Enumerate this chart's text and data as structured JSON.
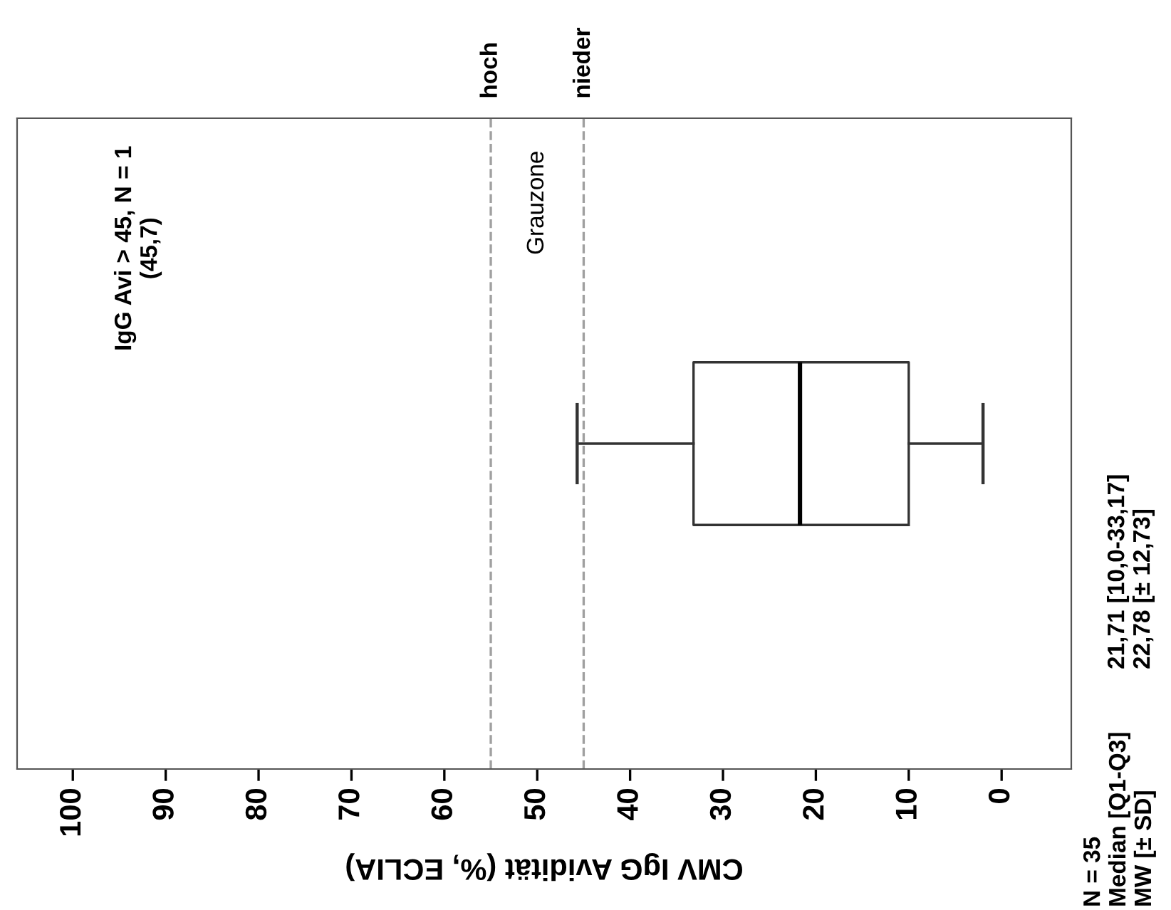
{
  "chart_data": {
    "type": "box",
    "orientation": "horizontal",
    "xlabel": "CMV IgG Avidität (%, ECLIA)",
    "categories": [
      null
    ],
    "boxes": [
      {
        "low": 2,
        "q1": 10.0,
        "median": 21.71,
        "q3": 33.17,
        "high": 45.7
      }
    ],
    "xlim": [
      106,
      -7.5
    ],
    "xticks": [
      0,
      10,
      20,
      30,
      40,
      50,
      60,
      70,
      80,
      90,
      100
    ],
    "ref_lines": [
      {
        "axis": "x",
        "value": 55,
        "label": "hoch",
        "color": "#a0a0a0",
        "line_style": "dashed"
      },
      {
        "axis": "x",
        "value": 45,
        "label": "nieder",
        "color": "#a0a0a0",
        "line_style": "dashed"
      }
    ],
    "annotations": [
      "Grauzone",
      "IgG Avi > 45, N = 1\n(45,7)",
      "N = 35\nMedian [Q1-Q3]\nMW [± SD]",
      "21,71 [10,0-33,17]\n22,78 [± 12,73]"
    ],
    "grid": false,
    "legend": false
  }
}
